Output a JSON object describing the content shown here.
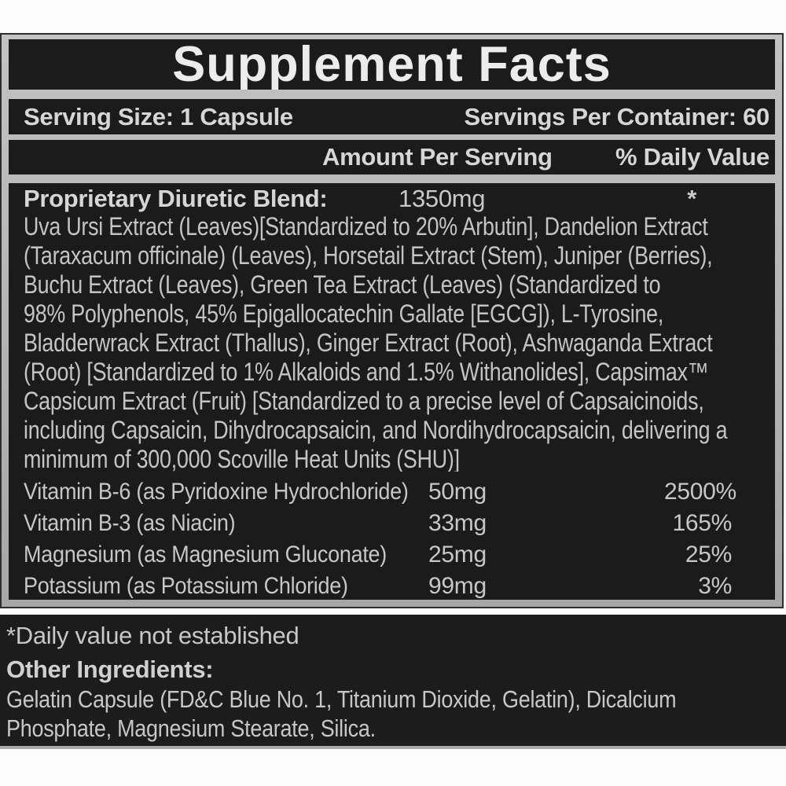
{
  "colors": {
    "page_background": "#ffffff",
    "panel_black": "#1b1b1b",
    "border_gray": "#b3b3b3",
    "text_light": "#c9c9c9"
  },
  "header": {
    "title": "Supplement Facts"
  },
  "serving": {
    "serving_size": "Serving Size: 1 Capsule",
    "servings_per_container": "Servings Per Container: 60"
  },
  "columns": {
    "amount_per_serving": "Amount Per Serving",
    "daily_value": "% Daily Value"
  },
  "blend": {
    "name": "Proprietary Diuretic Blend:",
    "amount": "1350mg",
    "daily_value": "*",
    "description_lines": [
      "Uva Ursi Extract (Leaves)[Standardized to 20% Arbutin], Dandelion Extract",
      "(Taraxacum officinale) (Leaves), Horsetail Extract (Stem), Juniper (Berries),",
      "Buchu Extract (Leaves), Green Tea Extract (Leaves) (Standardized to",
      "98% Polyphenols, 45% Epigallocatechin Gallate [EGCG]), L-Tyrosine,",
      "Bladderwrack Extract (Thallus), Ginger Extract (Root), Ashwaganda Extract",
      "(Root) [Standardized to 1% Alkaloids and 1.5% Withanolides], Capsimax™",
      "Capsicum Extract (Fruit) [Standardized to a precise level of Capsaicinoids,",
      "including Capsaicin, Dihydrocapsaicin, and Nordihydrocapsaicin, delivering a",
      "minimum of 300,000 Scoville Heat Units (SHU)]"
    ]
  },
  "nutrients": [
    {
      "name": "Vitamin B-6 (as Pyridoxine Hydrochloride)",
      "amount": "50mg",
      "daily_value": "2500%"
    },
    {
      "name": "Vitamin B-3 (as Niacin)",
      "amount": "33mg",
      "daily_value": "165%"
    },
    {
      "name": "Magnesium (as Magnesium Gluconate)",
      "amount": "25mg",
      "daily_value": "25%"
    },
    {
      "name": "Potassium (as Potassium Chloride)",
      "amount": "99mg",
      "daily_value": "3%"
    }
  ],
  "footnotes": {
    "daily_value_note": "*Daily value not established",
    "other_ingredients_label": "Other Ingredients:",
    "other_ingredients_lines": [
      "Gelatin Capsule (FD&C Blue No. 1, Titanium Dioxide, Gelatin), Dicalcium",
      "Phosphate, Magnesium Stearate, Silica."
    ]
  }
}
